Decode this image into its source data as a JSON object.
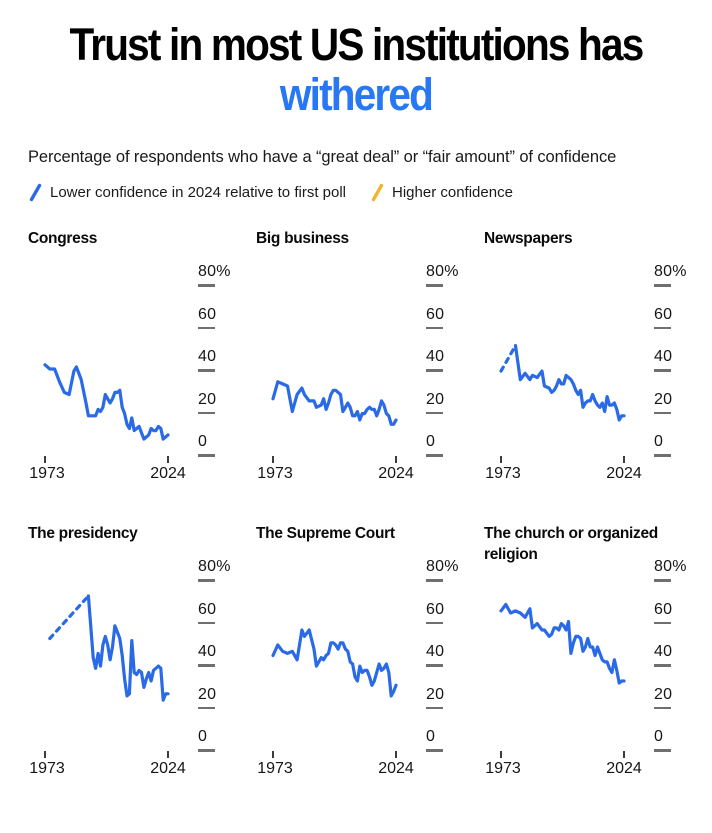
{
  "header": {
    "title_black": "Trust in most US institutions has ",
    "title_accent": "withered",
    "subtitle": "Percentage of respondents who have a “great deal” or “fair amount” of confidence"
  },
  "legend": {
    "lower_label": "Lower confidence in 2024 relative to first poll",
    "higher_label": "Higher confidence"
  },
  "axes": {
    "y_ticks": [
      "80%",
      "60",
      "40",
      "20",
      "0"
    ],
    "x_start": "1973",
    "x_end": "2024"
  },
  "colors": {
    "accent_blue": "#2778f2",
    "line_blue": "#2a6ae6",
    "legend_yellow": "#f0b42e",
    "tick_grey": "#6f6f6f"
  },
  "chart_data": [
    {
      "type": "line",
      "title": "Congress",
      "xlim": [
        1973,
        2024
      ],
      "ylim": [
        0,
        80
      ],
      "dashed_first_segment": false,
      "x": [
        1973,
        1975,
        1977,
        1979,
        1981,
        1983,
        1985,
        1986,
        1988,
        1990,
        1991,
        1993,
        1994,
        1995,
        1996,
        1997,
        1998,
        1999,
        2000,
        2001,
        2002,
        2003,
        2004,
        2005,
        2006,
        2007,
        2008,
        2009,
        2010,
        2011,
        2012,
        2013,
        2014,
        2015,
        2016,
        2017,
        2018,
        2019,
        2020,
        2021,
        2022,
        2023,
        2024
      ],
      "values": [
        42,
        40,
        40,
        34,
        29,
        28,
        39,
        41,
        35,
        24,
        18,
        18,
        18,
        21,
        20,
        22,
        28,
        26,
        24,
        26,
        29,
        29,
        30,
        22,
        19,
        14,
        12,
        17,
        11,
        12,
        13,
        10,
        7,
        8,
        9,
        12,
        11,
        11,
        13,
        12,
        7,
        8,
        9
      ]
    },
    {
      "type": "line",
      "title": "Big business",
      "xlim": [
        1973,
        2024
      ],
      "ylim": [
        0,
        80
      ],
      "dashed_first_segment": false,
      "x": [
        1973,
        1975,
        1977,
        1979,
        1981,
        1983,
        1985,
        1986,
        1988,
        1990,
        1991,
        1993,
        1994,
        1995,
        1996,
        1997,
        1998,
        1999,
        2000,
        2001,
        2002,
        2003,
        2004,
        2005,
        2006,
        2007,
        2008,
        2009,
        2010,
        2011,
        2012,
        2013,
        2014,
        2015,
        2016,
        2017,
        2018,
        2019,
        2020,
        2021,
        2022,
        2023,
        2024
      ],
      "values": [
        26,
        34,
        33,
        32,
        20,
        28,
        31,
        28,
        25,
        25,
        22,
        23,
        26,
        21,
        24,
        28,
        30,
        30,
        29,
        28,
        20,
        22,
        24,
        22,
        18,
        18,
        20,
        16,
        19,
        19,
        21,
        22,
        21,
        21,
        18,
        21,
        25,
        23,
        19,
        18,
        14,
        14,
        16
      ]
    },
    {
      "type": "line",
      "title": "Newspapers",
      "xlim": [
        1973,
        2024
      ],
      "ylim": [
        0,
        80
      ],
      "dashed_first_segment": true,
      "x": [
        1973,
        1979,
        1981,
        1983,
        1985,
        1986,
        1988,
        1990,
        1991,
        1993,
        1994,
        1995,
        1996,
        1997,
        1998,
        1999,
        2000,
        2001,
        2002,
        2003,
        2004,
        2005,
        2006,
        2007,
        2008,
        2009,
        2010,
        2011,
        2012,
        2013,
        2014,
        2015,
        2016,
        2017,
        2018,
        2019,
        2020,
        2021,
        2022,
        2023,
        2024
      ],
      "values": [
        39,
        51,
        35,
        38,
        35,
        37,
        36,
        39,
        32,
        31,
        29,
        30,
        32,
        35,
        33,
        33,
        37,
        36,
        35,
        33,
        30,
        28,
        30,
        22,
        24,
        25,
        25,
        28,
        25,
        23,
        22,
        24,
        20,
        27,
        23,
        23,
        24,
        21,
        16,
        18,
        18
      ]
    },
    {
      "type": "line",
      "title": "The presidency",
      "xlim": [
        1973,
        2024
      ],
      "ylim": [
        0,
        80
      ],
      "dashed_first_segment": true,
      "x": [
        1975,
        1991,
        1993,
        1994,
        1995,
        1996,
        1997,
        1998,
        1999,
        2000,
        2001,
        2002,
        2003,
        2004,
        2005,
        2006,
        2007,
        2008,
        2009,
        2010,
        2011,
        2012,
        2013,
        2014,
        2015,
        2016,
        2017,
        2018,
        2019,
        2020,
        2021,
        2022,
        2023,
        2024
      ],
      "values": [
        52,
        72,
        43,
        38,
        45,
        39,
        49,
        53,
        49,
        42,
        48,
        58,
        55,
        52,
        44,
        33,
        25,
        26,
        51,
        36,
        35,
        37,
        36,
        29,
        33,
        36,
        32,
        37,
        38,
        39,
        38,
        23,
        26,
        26
      ]
    },
    {
      "type": "line",
      "title": "The Supreme Court",
      "xlim": [
        1973,
        2024
      ],
      "ylim": [
        0,
        80
      ],
      "dashed_first_segment": false,
      "x": [
        1973,
        1975,
        1977,
        1979,
        1981,
        1983,
        1985,
        1986,
        1988,
        1990,
        1991,
        1993,
        1994,
        1995,
        1996,
        1997,
        1998,
        1999,
        2000,
        2001,
        2002,
        2003,
        2004,
        2005,
        2006,
        2007,
        2008,
        2009,
        2010,
        2011,
        2012,
        2013,
        2014,
        2015,
        2016,
        2017,
        2018,
        2019,
        2020,
        2021,
        2022,
        2023,
        2024
      ],
      "values": [
        44,
        49,
        46,
        45,
        46,
        42,
        56,
        53,
        56,
        47,
        39,
        43,
        42,
        44,
        45,
        50,
        50,
        49,
        47,
        50,
        50,
        47,
        46,
        41,
        40,
        34,
        32,
        39,
        36,
        37,
        37,
        34,
        30,
        32,
        36,
        40,
        37,
        38,
        40,
        36,
        25,
        27,
        30
      ]
    },
    {
      "type": "line",
      "title": "The church or organized religion",
      "xlim": [
        1973,
        2024
      ],
      "ylim": [
        0,
        80
      ],
      "dashed_first_segment": false,
      "x": [
        1973,
        1975,
        1977,
        1979,
        1981,
        1983,
        1985,
        1986,
        1988,
        1990,
        1991,
        1993,
        1994,
        1995,
        1996,
        1997,
        1998,
        1999,
        2000,
        2001,
        2002,
        2003,
        2004,
        2005,
        2006,
        2007,
        2008,
        2009,
        2010,
        2011,
        2012,
        2013,
        2014,
        2015,
        2016,
        2017,
        2018,
        2019,
        2020,
        2021,
        2022,
        2023,
        2024
      ],
      "values": [
        65,
        68,
        64,
        65,
        64,
        62,
        66,
        57,
        59,
        56,
        56,
        53,
        54,
        57,
        57,
        56,
        59,
        58,
        56,
        60,
        45,
        50,
        53,
        53,
        52,
        46,
        48,
        52,
        48,
        48,
        44,
        48,
        45,
        42,
        41,
        41,
        38,
        36,
        42,
        37,
        31,
        32,
        32
      ]
    }
  ]
}
